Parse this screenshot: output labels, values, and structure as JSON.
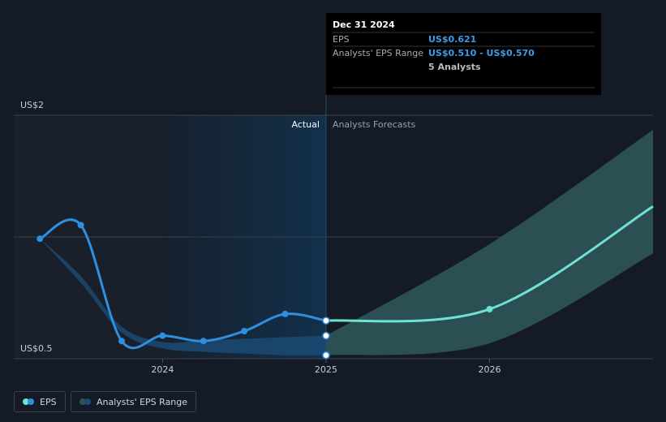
{
  "chart_data": {
    "type": "line",
    "log_scale": true,
    "grid": true,
    "labels": {
      "actual": "Actual",
      "forecast": "Analysts Forecasts"
    },
    "xlim": [
      2023.09,
      2027
    ],
    "xticks": [
      2024,
      2025,
      2026
    ],
    "ylim": [
      0.5,
      2
    ],
    "yticks": [
      {
        "value": 0.5,
        "label": "US$0.5"
      },
      {
        "value": 1,
        "label": null
      },
      {
        "value": 2,
        "label": "US$2"
      }
    ],
    "series": [
      {
        "name": "EPS",
        "color": "#2f8fdf",
        "forecast_color": "#6fe3d1",
        "x": [
          2023.25,
          2023.5,
          2023.75,
          2024,
          2024.25,
          2024.5,
          2024.75,
          2025,
          2026,
          2027
        ],
        "values": [
          0.99,
          1.07,
          0.553,
          0.57,
          0.553,
          0.585,
          0.645,
          0.621,
          0.663,
          1.19
        ]
      },
      {
        "name": "Analysts' EPS Range",
        "color": "#1b4a73",
        "forecast_color": "#2d5558",
        "x": [
          2023.25,
          2023.5,
          2023.75,
          2024,
          2024.25,
          2024.5,
          2024.75,
          2025,
          2026,
          2027
        ],
        "low": [
          0.99,
          0.77,
          0.58,
          0.53,
          0.52,
          0.515,
          0.51,
          0.51,
          0.546,
          0.91
        ],
        "high": [
          0.99,
          0.8,
          0.6,
          0.55,
          0.555,
          0.56,
          0.565,
          0.57,
          0.96,
          1.84
        ]
      }
    ],
    "tooltip": {
      "date": "Dec 31 2024",
      "eps_label": "EPS",
      "eps_value": "US$0.621",
      "range_label": "Analysts' EPS Range",
      "range_value": "US$0.510 - US$0.570",
      "analysts": "5 Analysts"
    }
  }
}
